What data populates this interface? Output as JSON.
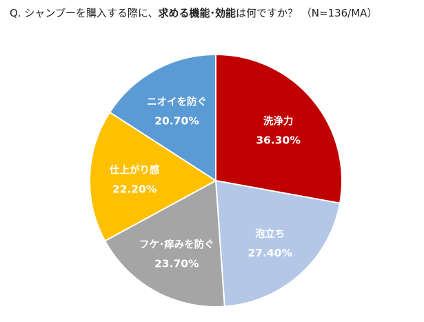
{
  "title": {
    "prefix": "Q. シャンプーを購入する際に、",
    "emphasis": "求める機能･効能",
    "suffix": "は何ですか？ （N=136/MA）"
  },
  "chart_data": {
    "type": "pie",
    "unit": "%",
    "start_angle_deg": 0,
    "direction": "clockwise",
    "slices": [
      {
        "label": "洗浄力",
        "value": 36.3,
        "value_text": "36.30%",
        "color": "#C00000"
      },
      {
        "label": "泡立ち",
        "value": 27.4,
        "value_text": "27.40%",
        "color": "#B4C7E7"
      },
      {
        "label": "フケ･痒みを防ぐ",
        "value": 23.7,
        "value_text": "23.70%",
        "color": "#A5A5A5"
      },
      {
        "label": "仕上がり感",
        "value": 22.2,
        "value_text": "22.20%",
        "color": "#FFC000"
      },
      {
        "label": "ニオイを防ぐ",
        "value": 20.7,
        "value_text": "20.70%",
        "color": "#5B9BD5"
      }
    ]
  }
}
